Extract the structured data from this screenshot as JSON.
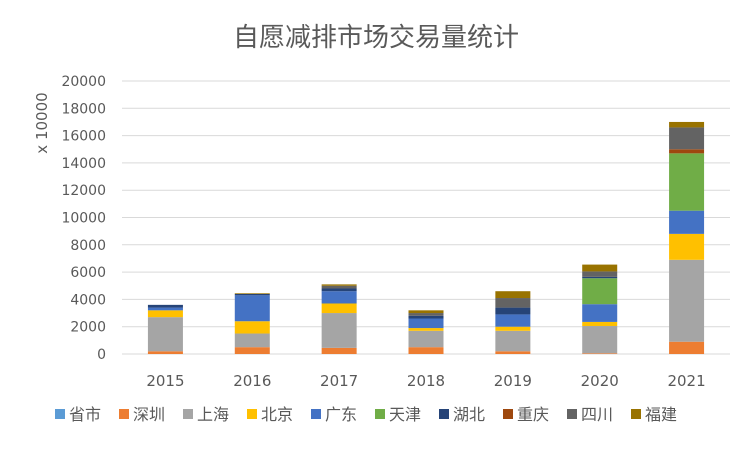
{
  "chart_data": {
    "type": "bar",
    "stacked": true,
    "title": "自愿减排市场交易量统计",
    "ylabel": "x 10000",
    "xlabel": "",
    "ylim": [
      0,
      20000
    ],
    "yticks": [
      0,
      2000,
      4000,
      6000,
      8000,
      10000,
      12000,
      14000,
      16000,
      18000,
      20000
    ],
    "grid": true,
    "legend_position": "bottom",
    "categories": [
      "2015",
      "2016",
      "2017",
      "2018",
      "2019",
      "2020",
      "2021"
    ],
    "series": [
      {
        "name": "省市",
        "color": "#5B9BD5",
        "values": [
          0,
          0,
          0,
          0,
          0,
          0,
          0
        ]
      },
      {
        "name": "深圳",
        "color": "#ED7D31",
        "values": [
          200,
          500,
          450,
          500,
          200,
          50,
          900
        ]
      },
      {
        "name": "上海",
        "color": "#A5A5A5",
        "values": [
          2500,
          1000,
          2550,
          1200,
          1500,
          2000,
          6000
        ]
      },
      {
        "name": "北京",
        "color": "#FFC000",
        "values": [
          500,
          900,
          700,
          200,
          300,
          300,
          1900
        ]
      },
      {
        "name": "广东",
        "color": "#4472C4",
        "values": [
          200,
          1900,
          900,
          700,
          900,
          1300,
          1700
        ]
      },
      {
        "name": "天津",
        "color": "#70AD47",
        "values": [
          0,
          0,
          0,
          0,
          0,
          1900,
          4200
        ]
      },
      {
        "name": "湖北",
        "color": "#264478",
        "values": [
          200,
          100,
          200,
          200,
          500,
          100,
          0
        ]
      },
      {
        "name": "重庆",
        "color": "#9E480E",
        "values": [
          0,
          0,
          0,
          0,
          0,
          0,
          300
        ]
      },
      {
        "name": "四川",
        "color": "#636363",
        "values": [
          0,
          0,
          200,
          200,
          700,
          400,
          1600
        ]
      },
      {
        "name": "福建",
        "color": "#997300",
        "values": [
          0,
          50,
          100,
          200,
          500,
          500,
          400
        ]
      }
    ]
  }
}
